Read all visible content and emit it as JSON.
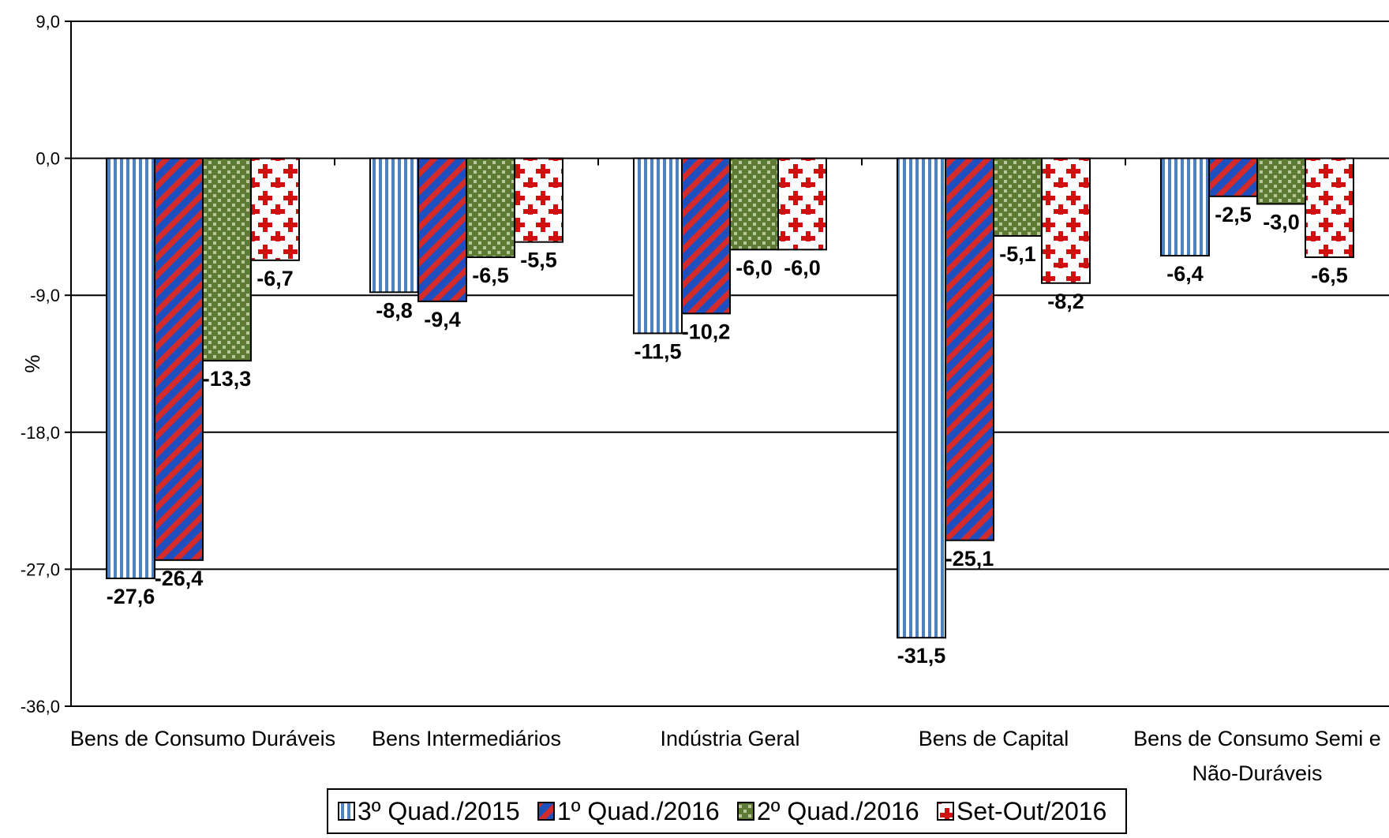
{
  "chart_data": {
    "type": "bar",
    "title": "",
    "xlabel": "",
    "ylabel": "%",
    "ylim": [
      -36,
      9
    ],
    "yticks": [
      "9,0",
      "0,0",
      "-9,0",
      "-18,0",
      "-27,0",
      "-36,0"
    ],
    "yticks_values": [
      9,
      0,
      -9,
      -18,
      -27,
      -36
    ],
    "grid": true,
    "legend_position": "bottom",
    "categories": [
      [
        "Bens de Consumo Duráveis"
      ],
      [
        "Bens Intermediários"
      ],
      [
        "Indústria Geral"
      ],
      [
        "Bens de Capital"
      ],
      [
        "Bens de Consumo Semi e",
        "Não-Duráveis"
      ]
    ],
    "series": [
      {
        "name": "3º Quad./2015",
        "values": [
          -27.6,
          -8.8,
          -11.5,
          -31.5,
          -6.4
        ],
        "labels": [
          "-27,6",
          "-8,8",
          "-11,5",
          "-31,5",
          "-6,4"
        ],
        "color": "#4F81BD",
        "pattern": "vertical-stripes"
      },
      {
        "name": "1º Quad./2016",
        "values": [
          -26.4,
          -9.4,
          -10.2,
          -25.1,
          -2.5
        ],
        "labels": [
          "-26,4",
          "-9,4",
          "-10,2",
          "-25,1",
          "-2,5"
        ],
        "color": "#C0282D",
        "pattern": "diagonal-stripes"
      },
      {
        "name": "2º Quad./2016",
        "values": [
          -13.3,
          -6.5,
          -6.0,
          -5.1,
          -3.0
        ],
        "labels": [
          "-13,3",
          "-6,5",
          "-6,0",
          "-5,1",
          "-3,0"
        ],
        "color": "#5E7B35",
        "pattern": "checker"
      },
      {
        "name": "Set-Out/2016",
        "values": [
          -6.7,
          -5.5,
          -6.0,
          -8.2,
          -6.5
        ],
        "labels": [
          "-6,7",
          "-5,5",
          "-6,0",
          "-8,2",
          "-6,5"
        ],
        "color": "#D01010",
        "pattern": "crosses"
      }
    ]
  }
}
